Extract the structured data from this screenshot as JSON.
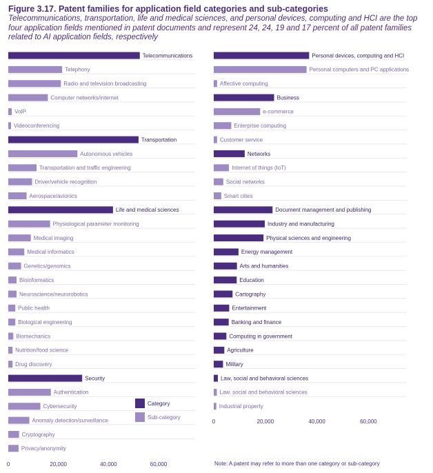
{
  "header": {
    "title": "Figure 3.17. Patent families for application field categories and sub-categories",
    "subtitle": "Telecommunications, transportation, life and medical sciences, and personal devices, computing and HCI are the top four application fields mentioned in patent documents and represent 24, 24, 19 and 17 percent of all patent families related to AI application fields, respectively"
  },
  "colors": {
    "category": "#4b2d7f",
    "subcategory": "#9e8bc4",
    "category_text": "#3a2466",
    "subcategory_text": "#7d6aa8"
  },
  "legend": {
    "category": "Category",
    "subcategory": "Sub-category",
    "placement": "bottom-right of left panel"
  },
  "note": "Note: A patent may refer to more than one category or sub-category",
  "chart_data": [
    {
      "type": "bar",
      "orientation": "horizontal",
      "xlim": [
        0,
        75000
      ],
      "xticks": [
        0,
        20000,
        40000,
        60000
      ],
      "xtick_labels": [
        "0",
        "20,000",
        "40,000",
        "60,000"
      ],
      "bars": [
        {
          "label": "Telecommunications",
          "value": 52500,
          "kind": "category"
        },
        {
          "label": "Telephony",
          "value": 21500,
          "kind": "sub"
        },
        {
          "label": "Radio and television broadcasting",
          "value": 21000,
          "kind": "sub"
        },
        {
          "label": "Computer networks/internet",
          "value": 15800,
          "kind": "sub"
        },
        {
          "label": "VoIP",
          "value": 1400,
          "kind": "sub"
        },
        {
          "label": "Videoconferencing",
          "value": 1100,
          "kind": "sub"
        },
        {
          "label": "Transportation",
          "value": 52000,
          "kind": "category"
        },
        {
          "label": "Autonomous vehicles",
          "value": 27600,
          "kind": "sub"
        },
        {
          "label": "Transportation and traffic engineering",
          "value": 11300,
          "kind": "sub"
        },
        {
          "label": "Driver/vehicle recognition",
          "value": 9500,
          "kind": "sub"
        },
        {
          "label": "Aerospace/avionics",
          "value": 7300,
          "kind": "sub"
        },
        {
          "label": "Life and medical sciences",
          "value": 41800,
          "kind": "category"
        },
        {
          "label": "Physiological parameter monitoring",
          "value": 16700,
          "kind": "sub"
        },
        {
          "label": "Medical imaging",
          "value": 9000,
          "kind": "sub"
        },
        {
          "label": "Medical informatics",
          "value": 6400,
          "kind": "sub"
        },
        {
          "label": "Genetics/genomics",
          "value": 5100,
          "kind": "sub"
        },
        {
          "label": "Bioinformatics",
          "value": 3300,
          "kind": "sub"
        },
        {
          "label": "Neuroscience/neurorobotics",
          "value": 3300,
          "kind": "sub"
        },
        {
          "label": "Public health",
          "value": 2800,
          "kind": "sub"
        },
        {
          "label": "Biological engineering",
          "value": 2800,
          "kind": "sub"
        },
        {
          "label": "Biomechanics",
          "value": 2000,
          "kind": "sub"
        },
        {
          "label": "Nutrition/food science",
          "value": 1700,
          "kind": "sub"
        },
        {
          "label": "Drug discovery",
          "value": 1700,
          "kind": "sub"
        },
        {
          "label": "Security",
          "value": 29500,
          "kind": "category"
        },
        {
          "label": "Authentication",
          "value": 17000,
          "kind": "sub"
        },
        {
          "label": "Cybersecurity",
          "value": 12800,
          "kind": "sub"
        },
        {
          "label": "Anomaly detection/surveillance",
          "value": 8400,
          "kind": "sub"
        },
        {
          "label": "Cryptography",
          "value": 4300,
          "kind": "sub"
        },
        {
          "label": "Privacy/anonymity",
          "value": 4100,
          "kind": "sub"
        }
      ]
    },
    {
      "type": "bar",
      "orientation": "horizontal",
      "xlim": [
        0,
        75000
      ],
      "xticks": [
        0,
        20000,
        40000,
        60000
      ],
      "xtick_labels": [
        "0",
        "20,000",
        "40,000",
        "60,000"
      ],
      "bars": [
        {
          "label": "Personal devices, computing and HCI",
          "value": 37000,
          "kind": "category"
        },
        {
          "label": "Personal computers and PC applications",
          "value": 36000,
          "kind": "sub"
        },
        {
          "label": "Affective computing",
          "value": 1300,
          "kind": "sub"
        },
        {
          "label": "Business",
          "value": 23400,
          "kind": "category"
        },
        {
          "label": "e-commerce",
          "value": 18000,
          "kind": "sub"
        },
        {
          "label": "Enterprise computing",
          "value": 6800,
          "kind": "sub"
        },
        {
          "label": "Customer service",
          "value": 1300,
          "kind": "sub"
        },
        {
          "label": "Networks",
          "value": 12000,
          "kind": "category"
        },
        {
          "label": "Internet of things (IoT)",
          "value": 5900,
          "kind": "sub"
        },
        {
          "label": "Social networks",
          "value": 3700,
          "kind": "sub"
        },
        {
          "label": "Smart cities",
          "value": 2900,
          "kind": "sub"
        },
        {
          "label": "Document management and publishing",
          "value": 22800,
          "kind": "category"
        },
        {
          "label": "Industry and manufacturing",
          "value": 19800,
          "kind": "category"
        },
        {
          "label": "Physical sciences and engineering",
          "value": 19300,
          "kind": "category"
        },
        {
          "label": "Energy management",
          "value": 9600,
          "kind": "category"
        },
        {
          "label": "Arts and humanities",
          "value": 9000,
          "kind": "category"
        },
        {
          "label": "Education",
          "value": 8900,
          "kind": "category"
        },
        {
          "label": "Cartography",
          "value": 7300,
          "kind": "category"
        },
        {
          "label": "Entertainment",
          "value": 6000,
          "kind": "category"
        },
        {
          "label": "Banking and finance",
          "value": 5800,
          "kind": "category"
        },
        {
          "label": "Computing in government",
          "value": 4900,
          "kind": "category"
        },
        {
          "label": "Agriculture",
          "value": 4100,
          "kind": "category"
        },
        {
          "label": "Military",
          "value": 3600,
          "kind": "category"
        },
        {
          "label": "Law, social and behavioral sciences",
          "value": 1600,
          "kind": "category"
        },
        {
          "label": "Law, social and behavioral sciences",
          "value": 1200,
          "kind": "sub"
        },
        {
          "label": "Industrial property",
          "value": 1000,
          "kind": "sub"
        }
      ]
    }
  ]
}
